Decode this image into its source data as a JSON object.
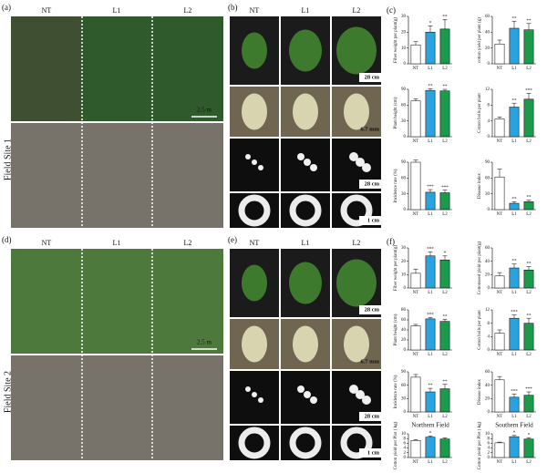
{
  "field_site_1": {
    "label": "(a)",
    "site": "Field Site 1",
    "columns": [
      "NT",
      "L1",
      "L2"
    ],
    "scale": "2.5 m"
  },
  "field_site_2": {
    "label": "(d)",
    "site": "Field Site 2",
    "columns": [
      "NT",
      "L1",
      "L2"
    ],
    "scale": "2.5 m"
  },
  "plant_photos_1": {
    "label": "(b)",
    "columns": [
      "NT",
      "L1",
      "L2"
    ],
    "scales": [
      "28 cm",
      "6.7 mm",
      "28 cm",
      "1 cm"
    ]
  },
  "plant_photos_2": {
    "label": "(e)",
    "columns": [
      "NT",
      "L1",
      "L2"
    ],
    "scales": [
      "28 cm",
      "6.7 mm",
      "28 cm",
      "1 cm"
    ]
  },
  "chart_labels": [
    "(c)",
    "(f)"
  ],
  "chart_data": [
    {
      "type": "bar",
      "y_label": "Fiber weight per plant(g)",
      "categories": [
        "NT",
        "L1",
        "L2"
      ],
      "values": [
        12,
        20,
        22
      ],
      "errors": [
        2,
        4,
        6
      ],
      "colors": [
        "#ffffff",
        "#29a3df",
        "#1a9a4a"
      ],
      "ylim": [
        0,
        30
      ],
      "yticks": [
        0,
        10,
        20,
        30
      ],
      "annotations": [
        null,
        "*",
        "**"
      ]
    },
    {
      "type": "bar",
      "y_label": "cotton yield per plant (g)",
      "categories": [
        "NT",
        "L1",
        "L2"
      ],
      "values": [
        25,
        45,
        43
      ],
      "errors": [
        5,
        9,
        8
      ],
      "colors": [
        "#ffffff",
        "#29a3df",
        "#1a9a4a"
      ],
      "ylim": [
        0,
        60
      ],
      "yticks": [
        0,
        20,
        40,
        60
      ],
      "annotations": [
        null,
        "**",
        "**"
      ]
    },
    {
      "type": "bar",
      "y_label": "Plant height (cm)",
      "categories": [
        "NT",
        "L1",
        "L2"
      ],
      "values": [
        68,
        88,
        87
      ],
      "errors": [
        4,
        3,
        3
      ],
      "colors": [
        "#ffffff",
        "#29a3df",
        "#1a9a4a"
      ],
      "ylim": [
        0,
        90
      ],
      "yticks": [
        0,
        30,
        60,
        90
      ],
      "annotations": [
        null,
        "**",
        "**"
      ]
    },
    {
      "type": "bar",
      "y_label": "Cotton bolls per plant",
      "categories": [
        "NT",
        "L1",
        "L2"
      ],
      "values": [
        4.5,
        7.5,
        9.5
      ],
      "errors": [
        0.5,
        1,
        1.5
      ],
      "colors": [
        "#ffffff",
        "#29a3df",
        "#1a9a4a"
      ],
      "ylim": [
        0,
        12
      ],
      "yticks": [
        0,
        4,
        8,
        12
      ],
      "annotations": [
        null,
        "**",
        "***"
      ]
    },
    {
      "type": "bar",
      "y_label": "Incidence rate (%)",
      "categories": [
        "NT",
        "L1",
        "L2"
      ],
      "values": [
        90,
        33,
        32
      ],
      "errors": [
        4,
        5,
        5
      ],
      "colors": [
        "#ffffff",
        "#29a3df",
        "#1a9a4a"
      ],
      "ylim": [
        0,
        90
      ],
      "yticks": [
        0,
        30,
        60,
        90
      ],
      "annotations": [
        null,
        "***",
        "***"
      ]
    },
    {
      "type": "bar",
      "y_label": "Disease index",
      "categories": [
        "NT",
        "L1",
        "L2"
      ],
      "values": [
        62,
        12,
        15
      ],
      "errors": [
        15,
        3,
        3
      ],
      "colors": [
        "#ffffff",
        "#29a3df",
        "#1a9a4a"
      ],
      "ylim": [
        0,
        90
      ],
      "yticks": [
        0,
        30,
        60,
        90
      ],
      "annotations": [
        null,
        "**",
        "**"
      ]
    },
    {
      "type": "bar",
      "y_label": "Fiber weight per plant(g)",
      "categories": [
        "NT",
        "L1",
        "L2"
      ],
      "values": [
        11,
        24,
        21
      ],
      "errors": [
        3,
        3,
        3
      ],
      "colors": [
        "#ffffff",
        "#29a3df",
        "#1a9a4a"
      ],
      "ylim": [
        0,
        30
      ],
      "yticks": [
        0,
        10,
        20,
        30
      ],
      "annotations": [
        null,
        "***",
        "*"
      ]
    },
    {
      "type": "bar",
      "y_label": "Cottonseed yield per plant(g)",
      "categories": [
        "NT",
        "L1",
        "L2"
      ],
      "values": [
        18,
        30,
        27
      ],
      "errors": [
        5,
        6,
        5
      ],
      "colors": [
        "#ffffff",
        "#29a3df",
        "#1a9a4a"
      ],
      "ylim": [
        0,
        60
      ],
      "yticks": [
        0,
        20,
        40,
        60
      ],
      "annotations": [
        null,
        "**",
        "**"
      ]
    },
    {
      "type": "bar",
      "y_label": "Plant height (cm)",
      "categories": [
        "NT",
        "L1",
        "L2"
      ],
      "values": [
        48,
        62,
        57
      ],
      "errors": [
        3,
        3,
        4
      ],
      "colors": [
        "#ffffff",
        "#29a3df",
        "#1a9a4a"
      ],
      "ylim": [
        0,
        80
      ],
      "yticks": [
        0,
        20,
        40,
        60,
        80
      ],
      "annotations": [
        null,
        "***",
        "**"
      ]
    },
    {
      "type": "bar",
      "y_label": "Cotton bolls per plant",
      "categories": [
        "NT",
        "L1",
        "L2"
      ],
      "values": [
        5,
        9.5,
        8
      ],
      "errors": [
        1,
        1,
        1.5
      ],
      "colors": [
        "#ffffff",
        "#29a3df",
        "#1a9a4a"
      ],
      "ylim": [
        0,
        12
      ],
      "yticks": [
        0,
        4,
        8,
        12
      ],
      "annotations": [
        null,
        "***",
        "**"
      ]
    },
    {
      "type": "bar",
      "y_label": "Incidence rate (%)",
      "categories": [
        "NT",
        "L1",
        "L2"
      ],
      "values": [
        78,
        45,
        52
      ],
      "errors": [
        6,
        8,
        10
      ],
      "colors": [
        "#ffffff",
        "#29a3df",
        "#1a9a4a"
      ],
      "ylim": [
        0,
        90
      ],
      "yticks": [
        0,
        30,
        60,
        90
      ],
      "annotations": [
        null,
        "**",
        "**"
      ]
    },
    {
      "type": "bar",
      "y_label": "Disease index",
      "categories": [
        "NT",
        "L1",
        "L2"
      ],
      "values": [
        48,
        22,
        25
      ],
      "errors": [
        5,
        5,
        5
      ],
      "colors": [
        "#ffffff",
        "#29a3df",
        "#1a9a4a"
      ],
      "ylim": [
        0,
        60
      ],
      "yticks": [
        0,
        20,
        40,
        60
      ],
      "annotations": [
        null,
        "***",
        "***"
      ]
    },
    {
      "type": "bar",
      "title": "Northern Field",
      "y_label": "Cotton yield per Plot ( kg)",
      "categories": [
        "NT",
        "L1",
        "L2"
      ],
      "values": [
        7.2,
        8.6,
        7.8
      ],
      "errors": [
        0.4,
        0.5,
        0.5
      ],
      "colors": [
        "#ffffff",
        "#29a3df",
        "#1a9a4a"
      ],
      "ylim": [
        0,
        10
      ],
      "yticks": [
        0,
        2,
        4,
        6,
        8,
        10
      ],
      "annotations": [
        null,
        "*",
        null
      ]
    },
    {
      "type": "bar",
      "title": "Southern Field",
      "y_label": "Cotton yield per Plot ( kg)",
      "categories": [
        "NT",
        "L1",
        "L2"
      ],
      "values": [
        6.2,
        8.8,
        7.8
      ],
      "errors": [
        0.3,
        0.5,
        0.6
      ],
      "colors": [
        "#ffffff",
        "#29a3df",
        "#1a9a4a"
      ],
      "ylim": [
        0,
        10
      ],
      "yticks": [
        0,
        2,
        4,
        6,
        8,
        10
      ],
      "annotations": [
        null,
        "*",
        "*"
      ]
    }
  ]
}
